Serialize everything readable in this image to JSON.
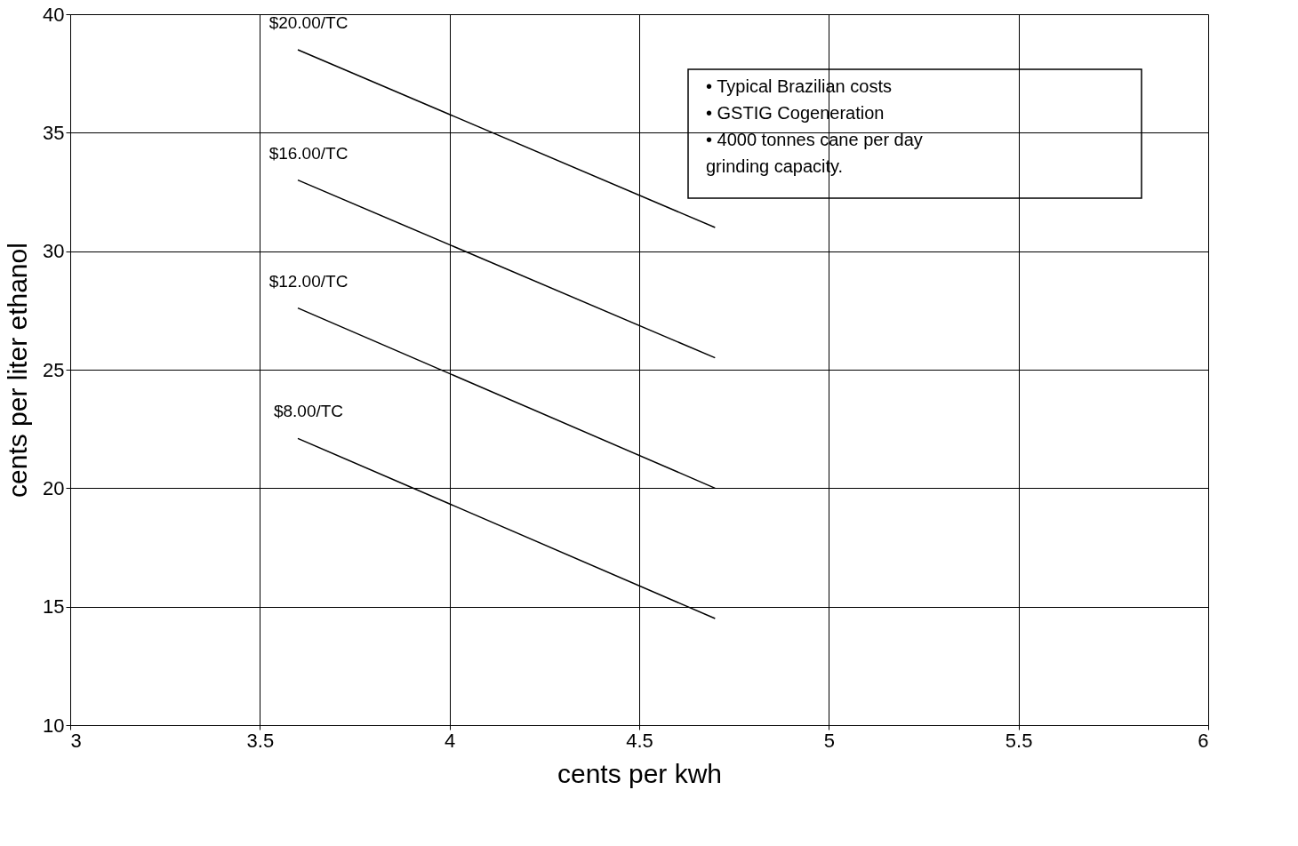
{
  "chart_data": {
    "type": "line",
    "xlabel": "cents per kwh",
    "ylabel": "cents per liter ethanol",
    "xlim": [
      3,
      6
    ],
    "xticks": [
      3,
      3.5,
      4,
      4.5,
      5,
      5.5,
      6
    ],
    "ylim": [
      10,
      40
    ],
    "yticks": [
      10,
      15,
      20,
      25,
      30,
      35,
      40
    ],
    "grid": true,
    "legend": false,
    "x": [
      3.6,
      4.7
    ],
    "series": [
      {
        "name": "$20.00/TC",
        "color": "#000000",
        "values": [
          38.5,
          31.0
        ]
      },
      {
        "name": "$16.00/TC",
        "color": "#000000",
        "values": [
          33.0,
          25.5
        ]
      },
      {
        "name": "$12.00/TC",
        "color": "#000000",
        "values": [
          27.6,
          20.0
        ]
      },
      {
        "name": "$8.00/TC",
        "color": "#000000",
        "values": [
          22.1,
          14.5
        ]
      }
    ],
    "annotations": [
      "• Typical Brazilian costs",
      "• GSTIG Cogeneration",
      "• 4000 tonnes cane per day\n   grinding capacity."
    ]
  }
}
